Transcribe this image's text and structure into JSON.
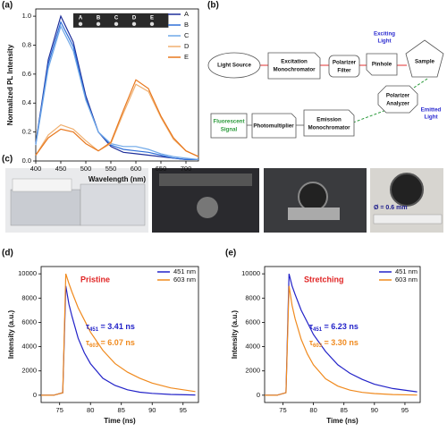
{
  "panel_labels": [
    "(a)",
    "(b)",
    "(c)",
    "(d)",
    "(e)"
  ],
  "chart_data": [
    {
      "type": "line",
      "xlabel": "Wavelength (nm)",
      "ylabel": "Normalized PL Intensity",
      "x": [
        400,
        425,
        450,
        475,
        500,
        525,
        550,
        575,
        600,
        625,
        650,
        675,
        700,
        725
      ],
      "xlim": [
        400,
        725
      ],
      "xticks": [
        400,
        450,
        500,
        550,
        600,
        650,
        700
      ],
      "ylim": [
        0,
        1.05
      ],
      "yticks": [
        {
          "value": 0,
          "label": "0.0"
        },
        0.2,
        0.4,
        0.6,
        0.8,
        {
          "value": 1,
          "label": "1.0"
        }
      ],
      "legend": "upper right",
      "inset_labels": [
        "A",
        "B",
        "C",
        "D",
        "E"
      ],
      "series": [
        {
          "name": "A",
          "color": "#1f2f9a",
          "values": [
            0.12,
            0.7,
            1.0,
            0.82,
            0.45,
            0.2,
            0.1,
            0.06,
            0.05,
            0.04,
            0.03,
            0.02,
            0.01,
            0.01
          ]
        },
        {
          "name": "B",
          "color": "#2f6fd8",
          "values": [
            0.12,
            0.67,
            0.96,
            0.79,
            0.43,
            0.2,
            0.11,
            0.08,
            0.07,
            0.06,
            0.04,
            0.02,
            0.01,
            0.01
          ]
        },
        {
          "name": "C",
          "color": "#6fa8e8",
          "values": [
            0.11,
            0.64,
            0.93,
            0.76,
            0.42,
            0.2,
            0.12,
            0.1,
            0.1,
            0.08,
            0.05,
            0.03,
            0.02,
            0.01
          ]
        },
        {
          "name": "D",
          "color": "#f0b070",
          "values": [
            0.04,
            0.18,
            0.25,
            0.22,
            0.14,
            0.07,
            0.12,
            0.33,
            0.53,
            0.48,
            0.3,
            0.15,
            0.07,
            0.03
          ]
        },
        {
          "name": "E",
          "color": "#e8781e",
          "values": [
            0.04,
            0.16,
            0.22,
            0.2,
            0.12,
            0.07,
            0.13,
            0.35,
            0.56,
            0.5,
            0.31,
            0.16,
            0.07,
            0.03
          ]
        }
      ]
    },
    {
      "type": "line",
      "xlabel": "Time (ns)",
      "ylabel": "Intensity (a.u.)",
      "x": [
        72,
        74,
        75.5,
        76,
        76.5,
        77,
        78,
        79,
        80,
        82,
        84,
        86,
        88,
        90,
        93,
        97
      ],
      "xlim": [
        72,
        97.5
      ],
      "xticks": [
        75,
        80,
        85,
        90,
        95
      ],
      "ylim": [
        -600,
        10600
      ],
      "yticks": [
        0,
        2000,
        4000,
        6000,
        8000,
        10000
      ],
      "legend": "upper right",
      "label": "Pristine",
      "label_color": "#e02424",
      "lifetimes": [
        {
          "symbol": "τ",
          "sub": "451",
          "text": " = 3.41 ns"
        },
        {
          "symbol": "τ",
          "sub": "603",
          "text": " = 6.07 ns"
        }
      ],
      "series": [
        {
          "name": "451 nm",
          "color": "#2222c8",
          "values": [
            0,
            0,
            200,
            9000,
            7500,
            6500,
            4700,
            3500,
            2600,
            1400,
            800,
            450,
            250,
            150,
            60,
            20
          ]
        },
        {
          "name": "603 nm",
          "color": "#f08a1e",
          "values": [
            0,
            0,
            200,
            10000,
            9200,
            8500,
            7200,
            6200,
            5200,
            3700,
            2600,
            1900,
            1400,
            1000,
            600,
            300
          ]
        }
      ]
    },
    {
      "type": "line",
      "xlabel": "Time (ns)",
      "ylabel": "Intensity (a.u.)",
      "x": [
        72,
        74,
        75.5,
        76,
        76.5,
        77,
        78,
        79,
        80,
        82,
        84,
        86,
        88,
        90,
        93,
        97
      ],
      "xlim": [
        72,
        97.5
      ],
      "xticks": [
        75,
        80,
        85,
        90,
        95
      ],
      "ylim": [
        -600,
        10600
      ],
      "yticks": [
        0,
        2000,
        4000,
        6000,
        8000,
        10000
      ],
      "legend": "upper right",
      "label": "Stretching",
      "label_color": "#e02424",
      "lifetimes": [
        {
          "symbol": "τ",
          "sub": "451",
          "text": " = 6.23 ns"
        },
        {
          "symbol": "τ",
          "sub": "603",
          "text": " = 3.30 ns"
        }
      ],
      "series": [
        {
          "name": "451 nm",
          "color": "#2222c8",
          "values": [
            0,
            0,
            200,
            10000,
            9000,
            8300,
            7000,
            6000,
            5000,
            3600,
            2500,
            1800,
            1300,
            900,
            550,
            280
          ]
        },
        {
          "name": "603 nm",
          "color": "#f08a1e",
          "values": [
            0,
            0,
            200,
            9000,
            7400,
            6300,
            4600,
            3400,
            2500,
            1350,
            750,
            420,
            230,
            140,
            55,
            15
          ]
        }
      ]
    }
  ],
  "diagram": {
    "light_source": "Light Source",
    "excitation": [
      "Excitation",
      "Monochromator"
    ],
    "polarizer_filter": [
      "Polarizer",
      "Filter"
    ],
    "exciting_light": [
      "Exciting",
      "Light"
    ],
    "pinhole": "Pinhole",
    "sample": "Sample",
    "analyzer": [
      "Polarizer",
      "Analyzer"
    ],
    "emitted_light": [
      "Emitted",
      "Light"
    ],
    "signal": [
      "Fluorescent",
      "Signal"
    ],
    "photomultiplier": "Photomultiplier",
    "emission": [
      "Emission",
      "Monochromator"
    ]
  },
  "photos": {
    "scale_label": "Ø = 0.6 mm"
  }
}
